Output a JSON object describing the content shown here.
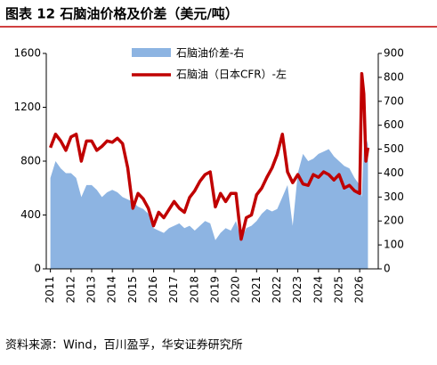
{
  "chart_data": {
    "type": "dual-axis-area-line",
    "title": "图表 12 石脑油价格及价差（美元/吨）",
    "source": "资料来源：Wind，百川盈孚，华安证券研究所",
    "x": [
      2011,
      2011.25,
      2011.5,
      2011.75,
      2012,
      2012.25,
      2012.5,
      2012.75,
      2013,
      2013.25,
      2013.5,
      2013.75,
      2014,
      2014.25,
      2014.5,
      2014.75,
      2015,
      2015.25,
      2015.5,
      2015.75,
      2016,
      2016.25,
      2016.5,
      2016.75,
      2017,
      2017.25,
      2017.5,
      2017.75,
      2018,
      2018.25,
      2018.5,
      2018.75,
      2019,
      2019.25,
      2019.5,
      2019.75,
      2020,
      2020.25,
      2020.5,
      2020.75,
      2021,
      2021.25,
      2021.5,
      2021.75,
      2022,
      2022.25,
      2022.5,
      2022.75,
      2023,
      2023.25,
      2023.5,
      2023.75,
      2024,
      2024.25,
      2024.5,
      2024.75,
      2025,
      2025.25,
      2025.5,
      2025.75,
      2026,
      2026.1,
      2026.2,
      2026.3,
      2026.4
    ],
    "series": [
      {
        "name": "石脑油价差-右",
        "color": "#8db4e2",
        "axis": "y2",
        "kind": "area",
        "values": [
          380,
          450,
          420,
          400,
          400,
          380,
          300,
          350,
          350,
          330,
          300,
          320,
          330,
          320,
          300,
          290,
          280,
          260,
          250,
          230,
          170,
          160,
          150,
          170,
          180,
          190,
          170,
          180,
          160,
          180,
          200,
          190,
          120,
          150,
          170,
          160,
          200,
          120,
          170,
          180,
          200,
          230,
          250,
          240,
          250,
          300,
          350,
          180,
          400,
          480,
          450,
          460,
          480,
          490,
          500,
          470,
          450,
          430,
          420,
          380,
          350,
          300,
          500,
          550,
          520
        ]
      },
      {
        "name": "石脑油（日本CFR）-左",
        "color": "#c00000",
        "kind": "line",
        "values": [
          900,
          1000,
          950,
          880,
          980,
          1000,
          800,
          950,
          950,
          880,
          910,
          950,
          940,
          970,
          930,
          750,
          450,
          560,
          520,
          450,
          320,
          420,
          380,
          440,
          500,
          450,
          420,
          530,
          580,
          650,
          700,
          720,
          460,
          560,
          500,
          560,
          560,
          220,
          380,
          400,
          550,
          600,
          680,
          750,
          850,
          1000,
          720,
          640,
          700,
          630,
          620,
          700,
          680,
          720,
          700,
          660,
          700,
          600,
          620,
          580,
          560,
          1450,
          1300,
          800,
          900
        ]
      }
    ],
    "xlim": [
      2010.8,
      2026.9
    ],
    "xticks": [
      2011,
      2012,
      2013,
      2014,
      2015,
      2016,
      2017,
      2018,
      2019,
      2020,
      2021,
      2022,
      2023,
      2024,
      2025,
      2026
    ],
    "ylim": [
      0,
      1600
    ],
    "yticks": [
      0,
      400,
      800,
      1200,
      1600
    ],
    "y2lim": [
      0,
      900
    ],
    "y2ticks": [
      0,
      100,
      200,
      300,
      400,
      500,
      600,
      700,
      800,
      900
    ],
    "grid": false
  }
}
